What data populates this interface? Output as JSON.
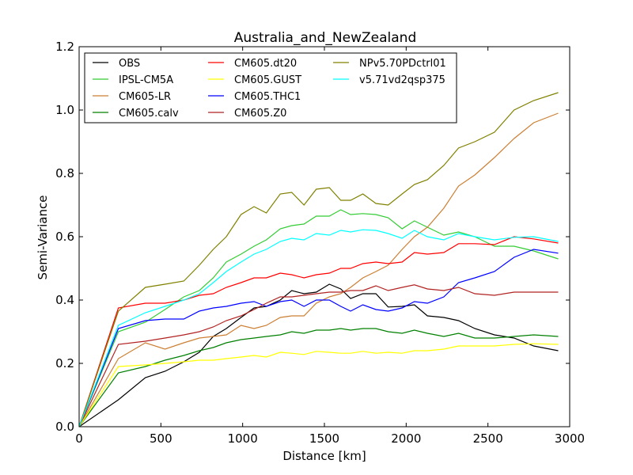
{
  "chart_data": {
    "type": "line",
    "title": "Australia_and_NewZealand",
    "xlabel": "Distance [km]",
    "ylabel": "Semi-Variance",
    "xlim": [
      0,
      3000
    ],
    "ylim": [
      0.0,
      1.2
    ],
    "xticks": [
      0,
      500,
      1000,
      1500,
      2000,
      2500,
      3000
    ],
    "xtick_labels": [
      "0",
      "500",
      "1000",
      "1500",
      "2000",
      "2500",
      "3000"
    ],
    "yticks": [
      0.0,
      0.2,
      0.4,
      0.6,
      0.8,
      1.0,
      1.2
    ],
    "ytick_labels": [
      "0.0",
      "0.2",
      "0.4",
      "0.6",
      "0.8",
      "1.0",
      "1.2"
    ],
    "grid": false,
    "legend_position": "upper-left",
    "legend_columns": 3,
    "x": [
      0,
      240,
      405,
      525,
      640,
      735,
      820,
      900,
      990,
      1070,
      1145,
      1230,
      1300,
      1375,
      1450,
      1530,
      1600,
      1660,
      1735,
      1815,
      1890,
      1975,
      2050,
      2130,
      2230,
      2320,
      2420,
      2540,
      2660,
      2780,
      2930
    ],
    "series": [
      {
        "name": "OBS",
        "color": "#000000",
        "values": [
          0.0,
          0.085,
          0.155,
          0.175,
          0.205,
          0.235,
          0.285,
          0.31,
          0.345,
          0.375,
          0.38,
          0.4,
          0.43,
          0.42,
          0.425,
          0.45,
          0.435,
          0.405,
          0.42,
          0.42,
          0.378,
          0.38,
          0.385,
          0.35,
          0.345,
          0.335,
          0.31,
          0.29,
          0.28,
          0.255,
          0.24
        ]
      },
      {
        "name": "IPSL-CM5A",
        "color": "#33cc33",
        "values": [
          0.0,
          0.3,
          0.33,
          0.37,
          0.41,
          0.43,
          0.47,
          0.52,
          0.545,
          0.57,
          0.59,
          0.625,
          0.635,
          0.64,
          0.665,
          0.665,
          0.685,
          0.67,
          0.673,
          0.67,
          0.66,
          0.625,
          0.65,
          0.63,
          0.605,
          0.615,
          0.6,
          0.57,
          0.57,
          0.555,
          0.53
        ]
      },
      {
        "name": "CM605-LR",
        "color": "#cc7f33",
        "values": [
          0.0,
          0.215,
          0.265,
          0.245,
          0.265,
          0.28,
          0.285,
          0.29,
          0.32,
          0.31,
          0.32,
          0.345,
          0.35,
          0.35,
          0.39,
          0.41,
          0.42,
          0.44,
          0.47,
          0.49,
          0.51,
          0.56,
          0.6,
          0.63,
          0.69,
          0.76,
          0.795,
          0.85,
          0.91,
          0.96,
          0.99
        ]
      },
      {
        "name": "CM605.calv",
        "color": "#008000",
        "values": [
          0.0,
          0.17,
          0.19,
          0.21,
          0.225,
          0.24,
          0.25,
          0.265,
          0.275,
          0.28,
          0.285,
          0.29,
          0.3,
          0.295,
          0.305,
          0.305,
          0.31,
          0.305,
          0.31,
          0.31,
          0.3,
          0.295,
          0.305,
          0.295,
          0.285,
          0.295,
          0.28,
          0.28,
          0.285,
          0.29,
          0.285
        ]
      },
      {
        "name": "CM605.dt20",
        "color": "#ff0000",
        "values": [
          0.0,
          0.375,
          0.39,
          0.39,
          0.4,
          0.415,
          0.42,
          0.44,
          0.455,
          0.47,
          0.47,
          0.485,
          0.48,
          0.47,
          0.48,
          0.485,
          0.5,
          0.5,
          0.515,
          0.52,
          0.515,
          0.52,
          0.55,
          0.545,
          0.55,
          0.578,
          0.578,
          0.575,
          0.6,
          0.593,
          0.58
        ]
      },
      {
        "name": "CM605.GUST",
        "color": "#ffff00",
        "values": [
          0.0,
          0.19,
          0.195,
          0.2,
          0.205,
          0.21,
          0.21,
          0.215,
          0.22,
          0.225,
          0.22,
          0.235,
          0.232,
          0.228,
          0.238,
          0.235,
          0.232,
          0.232,
          0.238,
          0.232,
          0.235,
          0.232,
          0.24,
          0.24,
          0.245,
          0.255,
          0.255,
          0.255,
          0.26,
          0.262,
          0.26
        ]
      },
      {
        "name": "CM605.THC1",
        "color": "#0000ff",
        "values": [
          0.0,
          0.31,
          0.335,
          0.34,
          0.34,
          0.365,
          0.375,
          0.38,
          0.39,
          0.395,
          0.38,
          0.395,
          0.4,
          0.38,
          0.4,
          0.4,
          0.38,
          0.365,
          0.385,
          0.37,
          0.365,
          0.375,
          0.395,
          0.39,
          0.41,
          0.455,
          0.47,
          0.49,
          0.535,
          0.56,
          0.548
        ]
      },
      {
        "name": "CM605.Z0",
        "color": "#b22222",
        "values": [
          0.0,
          0.26,
          0.27,
          0.28,
          0.29,
          0.3,
          0.315,
          0.335,
          0.35,
          0.37,
          0.39,
          0.41,
          0.41,
          0.415,
          0.42,
          0.425,
          0.425,
          0.43,
          0.43,
          0.445,
          0.43,
          0.44,
          0.448,
          0.435,
          0.43,
          0.44,
          0.42,
          0.415,
          0.425,
          0.425,
          0.425
        ]
      },
      {
        "name": "NPv5.70PDctrl01",
        "color": "#808000",
        "values": [
          0.0,
          0.365,
          0.44,
          0.45,
          0.46,
          0.51,
          0.56,
          0.6,
          0.67,
          0.695,
          0.675,
          0.735,
          0.74,
          0.7,
          0.75,
          0.755,
          0.715,
          0.715,
          0.735,
          0.705,
          0.7,
          0.735,
          0.765,
          0.78,
          0.825,
          0.88,
          0.9,
          0.93,
          1.0,
          1.03,
          1.055
        ]
      },
      {
        "name": "v5.71vd2qsp375",
        "color": "#00ffff",
        "values": [
          0.0,
          0.32,
          0.36,
          0.38,
          0.4,
          0.42,
          0.455,
          0.49,
          0.52,
          0.545,
          0.56,
          0.585,
          0.595,
          0.59,
          0.61,
          0.605,
          0.62,
          0.615,
          0.622,
          0.62,
          0.61,
          0.595,
          0.62,
          0.6,
          0.59,
          0.61,
          0.6,
          0.59,
          0.598,
          0.6,
          0.585
        ]
      }
    ]
  }
}
